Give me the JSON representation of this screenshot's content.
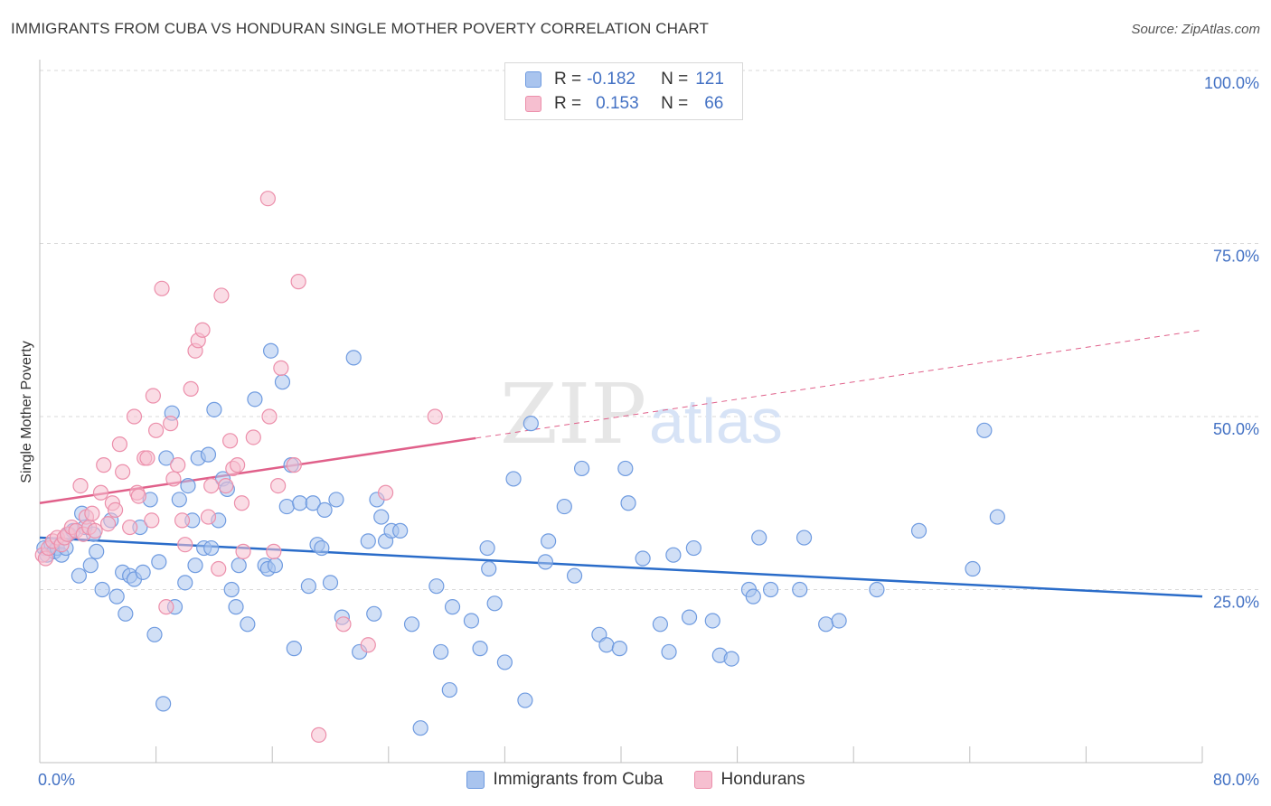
{
  "header": {
    "title": "IMMIGRANTS FROM CUBA VS HONDURAN SINGLE MOTHER POVERTY CORRELATION CHART",
    "source": "Source: ZipAtlas.com"
  },
  "legend": {
    "rows": [
      {
        "r_label": "R =",
        "r_value": "-0.182",
        "n_label": "N =",
        "n_value": "121"
      },
      {
        "r_label": "R =",
        "r_value": "0.153",
        "n_label": "N =",
        "n_value": "66"
      }
    ]
  },
  "watermark": {
    "zip": "ZIP",
    "atlas": "atlas"
  },
  "colors": {
    "cuba_fill": "#a9c4ee",
    "cuba_stroke": "#6f9be0",
    "cuba_line": "#2a6cc9",
    "hond_fill": "#f6bfd0",
    "hond_stroke": "#ec8fab",
    "hond_line": "#e0608a",
    "grid": "#d9d9d9",
    "tick": "#4472c4"
  },
  "chart_data": {
    "type": "scatter",
    "title": "IMMIGRANTS FROM CUBA VS HONDURAN SINGLE MOTHER POVERTY CORRELATION CHART",
    "xlabel": "",
    "ylabel": "Single Mother Poverty",
    "xlim": [
      0,
      80
    ],
    "ylim": [
      0,
      100
    ],
    "x_tick_labels": [
      "0.0%",
      "80.0%"
    ],
    "y_tick_labels": [
      "25.0%",
      "50.0%",
      "75.0%",
      "100.0%"
    ],
    "y_ticks": [
      25,
      50,
      75,
      100
    ],
    "grid": true,
    "legend_placement": "bottom-center",
    "series": [
      {
        "name": "Immigrants from Cuba",
        "r": -0.182,
        "n": 121,
        "trend": {
          "x": [
            0,
            80
          ],
          "y": [
            32.5,
            24.0
          ],
          "solid_to": 80
        },
        "points": [
          [
            0.3,
            31
          ],
          [
            0.5,
            30
          ],
          [
            0.8,
            31.5
          ],
          [
            1.0,
            30.5
          ],
          [
            1.2,
            31
          ],
          [
            1.5,
            30
          ],
          [
            1.8,
            31
          ],
          [
            2.0,
            33
          ],
          [
            2.3,
            33.5
          ],
          [
            2.7,
            27
          ],
          [
            2.9,
            36
          ],
          [
            3.1,
            34
          ],
          [
            3.5,
            28.5
          ],
          [
            3.7,
            33
          ],
          [
            3.9,
            30.5
          ],
          [
            4.3,
            25
          ],
          [
            4.9,
            35
          ],
          [
            5.3,
            24
          ],
          [
            5.7,
            27.5
          ],
          [
            5.9,
            21.5
          ],
          [
            6.2,
            27
          ],
          [
            6.5,
            26.5
          ],
          [
            6.9,
            34
          ],
          [
            7.1,
            27.5
          ],
          [
            7.6,
            38
          ],
          [
            7.9,
            18.5
          ],
          [
            8.2,
            29
          ],
          [
            8.5,
            8.5
          ],
          [
            8.7,
            44
          ],
          [
            9.1,
            50.5
          ],
          [
            9.3,
            22.5
          ],
          [
            9.6,
            38
          ],
          [
            10.0,
            26
          ],
          [
            10.2,
            40
          ],
          [
            10.5,
            35
          ],
          [
            10.7,
            28.5
          ],
          [
            10.9,
            44
          ],
          [
            11.3,
            31
          ],
          [
            11.6,
            44.5
          ],
          [
            11.8,
            31
          ],
          [
            12.0,
            51
          ],
          [
            12.3,
            35
          ],
          [
            12.6,
            41
          ],
          [
            12.9,
            39.5
          ],
          [
            13.2,
            25
          ],
          [
            13.5,
            22.5
          ],
          [
            13.7,
            28.5
          ],
          [
            14.3,
            20
          ],
          [
            14.8,
            52.5
          ],
          [
            15.5,
            28.5
          ],
          [
            15.7,
            28
          ],
          [
            15.9,
            59.5
          ],
          [
            16.2,
            28.5
          ],
          [
            16.7,
            55
          ],
          [
            17.0,
            37
          ],
          [
            17.3,
            43
          ],
          [
            17.5,
            16.5
          ],
          [
            17.9,
            37.5
          ],
          [
            18.5,
            25.5
          ],
          [
            18.8,
            37.5
          ],
          [
            19.1,
            31.5
          ],
          [
            19.4,
            31
          ],
          [
            19.6,
            36.5
          ],
          [
            20.0,
            26
          ],
          [
            20.4,
            38
          ],
          [
            20.8,
            21
          ],
          [
            21.6,
            58.5
          ],
          [
            22.0,
            16
          ],
          [
            22.6,
            32
          ],
          [
            23.0,
            21.5
          ],
          [
            23.2,
            38
          ],
          [
            23.5,
            35.5
          ],
          [
            23.8,
            32
          ],
          [
            24.2,
            33.5
          ],
          [
            24.8,
            33.5
          ],
          [
            25.6,
            20
          ],
          [
            26.2,
            5
          ],
          [
            27.3,
            25.5
          ],
          [
            27.6,
            16
          ],
          [
            28.2,
            10.5
          ],
          [
            28.4,
            22.5
          ],
          [
            29.7,
            20.5
          ],
          [
            30.3,
            16.5
          ],
          [
            30.8,
            31
          ],
          [
            30.9,
            28
          ],
          [
            31.3,
            23
          ],
          [
            32.0,
            14.5
          ],
          [
            32.6,
            41
          ],
          [
            33.4,
            9
          ],
          [
            33.8,
            49
          ],
          [
            34.8,
            29
          ],
          [
            35.0,
            32
          ],
          [
            36.1,
            37
          ],
          [
            36.8,
            27
          ],
          [
            37.3,
            42.5
          ],
          [
            38.5,
            18.5
          ],
          [
            39.0,
            17
          ],
          [
            39.9,
            16.5
          ],
          [
            40.3,
            42.5
          ],
          [
            40.5,
            37.5
          ],
          [
            41.5,
            29.5
          ],
          [
            42.7,
            20
          ],
          [
            43.3,
            16
          ],
          [
            43.6,
            30
          ],
          [
            44.7,
            21
          ],
          [
            45.0,
            31
          ],
          [
            46.3,
            20.5
          ],
          [
            46.8,
            15.5
          ],
          [
            47.6,
            15
          ],
          [
            48.8,
            25
          ],
          [
            49.1,
            24
          ],
          [
            49.5,
            32.5
          ],
          [
            50.3,
            25
          ],
          [
            52.3,
            25
          ],
          [
            52.6,
            32.5
          ],
          [
            54.1,
            20
          ],
          [
            55.0,
            20.5
          ],
          [
            57.6,
            25
          ],
          [
            60.5,
            33.5
          ],
          [
            64.2,
            28
          ],
          [
            65.0,
            48
          ],
          [
            65.9,
            35.5
          ]
        ]
      },
      {
        "name": "Hondurans",
        "r": 0.153,
        "n": 66,
        "trend": {
          "x": [
            0,
            80
          ],
          "y": [
            37.5,
            62.5
          ],
          "solid_to": 30
        },
        "points": [
          [
            0.2,
            30
          ],
          [
            0.4,
            29.5
          ],
          [
            0.6,
            31
          ],
          [
            0.9,
            32
          ],
          [
            1.2,
            32.5
          ],
          [
            1.5,
            31.5
          ],
          [
            1.7,
            32.5
          ],
          [
            1.9,
            33
          ],
          [
            2.2,
            34
          ],
          [
            2.5,
            33.5
          ],
          [
            2.8,
            40
          ],
          [
            3.0,
            33
          ],
          [
            3.2,
            35.5
          ],
          [
            3.4,
            34
          ],
          [
            3.6,
            36
          ],
          [
            3.8,
            33.5
          ],
          [
            4.2,
            39
          ],
          [
            4.4,
            43
          ],
          [
            4.7,
            34.5
          ],
          [
            5.0,
            37.5
          ],
          [
            5.2,
            36.5
          ],
          [
            5.5,
            46
          ],
          [
            5.7,
            42
          ],
          [
            6.2,
            34
          ],
          [
            6.5,
            50
          ],
          [
            6.7,
            39
          ],
          [
            6.8,
            38.5
          ],
          [
            7.2,
            44
          ],
          [
            7.4,
            44
          ],
          [
            7.7,
            35
          ],
          [
            7.8,
            53
          ],
          [
            8.0,
            48
          ],
          [
            8.4,
            68.5
          ],
          [
            8.7,
            22.5
          ],
          [
            9.0,
            49
          ],
          [
            9.2,
            41
          ],
          [
            9.5,
            43
          ],
          [
            9.8,
            35
          ],
          [
            10.0,
            31.5
          ],
          [
            10.4,
            54
          ],
          [
            10.7,
            59.5
          ],
          [
            10.9,
            61
          ],
          [
            11.2,
            62.5
          ],
          [
            11.6,
            35.5
          ],
          [
            11.8,
            40
          ],
          [
            12.3,
            28
          ],
          [
            12.5,
            67.5
          ],
          [
            12.8,
            40
          ],
          [
            13.1,
            46.5
          ],
          [
            13.3,
            42.5
          ],
          [
            13.6,
            43
          ],
          [
            13.9,
            37.5
          ],
          [
            14.0,
            30.5
          ],
          [
            14.7,
            47
          ],
          [
            15.7,
            81.5
          ],
          [
            15.8,
            50
          ],
          [
            16.1,
            30.5
          ],
          [
            16.4,
            40
          ],
          [
            16.6,
            57
          ],
          [
            17.5,
            43
          ],
          [
            17.8,
            69.5
          ],
          [
            19.2,
            4
          ],
          [
            20.9,
            20
          ],
          [
            22.6,
            17
          ],
          [
            23.8,
            39
          ],
          [
            27.2,
            50
          ]
        ]
      }
    ]
  }
}
